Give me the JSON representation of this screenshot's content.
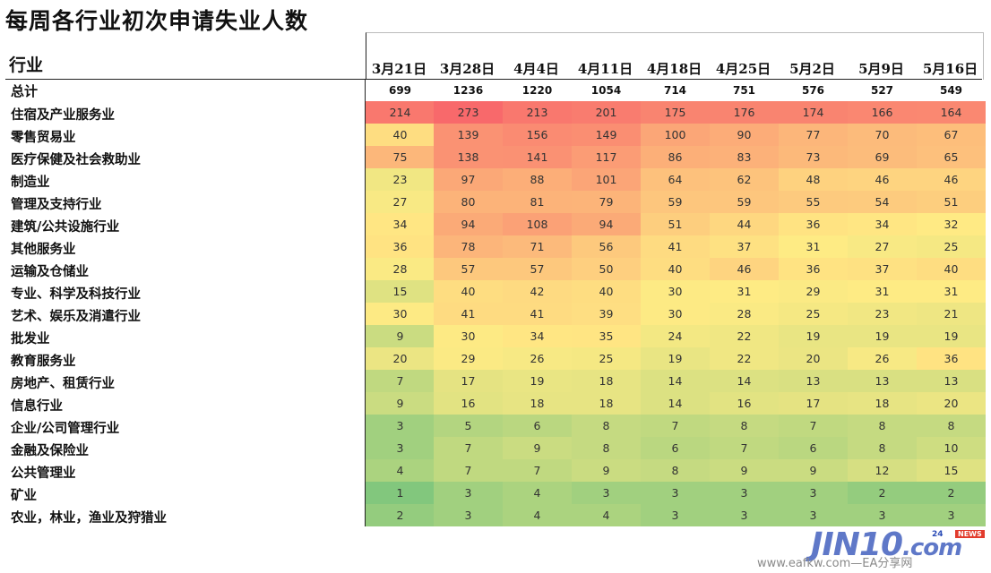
{
  "title": "每周各行业初次申请失业人数",
  "chart_data": {
    "type": "table",
    "row_header": "行业",
    "columns": [
      "3月21日",
      "3月28日",
      "4月4日",
      "4月11日",
      "4月18日",
      "4月25日",
      "5月2日",
      "5月9日",
      "5月16日"
    ],
    "total": {
      "label": "总计",
      "values": [
        699,
        1236,
        1220,
        1054,
        714,
        751,
        576,
        527,
        549
      ]
    },
    "rows": [
      {
        "label": "住宿及产业服务业",
        "values": [
          214,
          273,
          213,
          201,
          175,
          176,
          174,
          166,
          164
        ]
      },
      {
        "label": "零售贸易业",
        "values": [
          40,
          139,
          156,
          149,
          100,
          90,
          77,
          70,
          67
        ]
      },
      {
        "label": "医疗保健及社会救助业",
        "values": [
          75,
          138,
          141,
          117,
          86,
          83,
          73,
          69,
          65
        ]
      },
      {
        "label": "制造业",
        "values": [
          23,
          97,
          88,
          101,
          64,
          62,
          48,
          46,
          46
        ]
      },
      {
        "label": "管理及支持行业",
        "values": [
          27,
          80,
          81,
          79,
          59,
          59,
          55,
          54,
          51
        ]
      },
      {
        "label": "建筑/公共设施行业",
        "values": [
          34,
          94,
          108,
          94,
          51,
          44,
          36,
          34,
          32
        ]
      },
      {
        "label": "其他服务业",
        "values": [
          36,
          78,
          71,
          56,
          41,
          37,
          31,
          27,
          25
        ]
      },
      {
        "label": "运输及仓储业",
        "values": [
          28,
          57,
          57,
          50,
          40,
          46,
          36,
          37,
          40
        ]
      },
      {
        "label": "专业、科学及科技行业",
        "values": [
          15,
          40,
          42,
          40,
          30,
          31,
          29,
          31,
          31
        ]
      },
      {
        "label": "艺术、娱乐及消遣行业",
        "values": [
          30,
          41,
          41,
          39,
          30,
          28,
          25,
          23,
          21
        ]
      },
      {
        "label": "批发业",
        "values": [
          9,
          30,
          34,
          35,
          24,
          22,
          19,
          19,
          19
        ]
      },
      {
        "label": "教育服务业",
        "values": [
          20,
          29,
          26,
          25,
          19,
          22,
          20,
          26,
          36
        ]
      },
      {
        "label": "房地产、租赁行业",
        "values": [
          7,
          17,
          19,
          18,
          14,
          14,
          13,
          13,
          13
        ]
      },
      {
        "label": "信息行业",
        "values": [
          9,
          16,
          18,
          18,
          14,
          16,
          17,
          18,
          20
        ]
      },
      {
        "label": "企业/公司管理行业",
        "values": [
          3,
          5,
          6,
          8,
          7,
          8,
          7,
          8,
          8
        ]
      },
      {
        "label": "金融及保险业",
        "values": [
          3,
          7,
          9,
          8,
          6,
          7,
          6,
          8,
          10
        ]
      },
      {
        "label": "公共管理业",
        "values": [
          4,
          7,
          7,
          9,
          8,
          9,
          9,
          12,
          15
        ]
      },
      {
        "label": "矿业",
        "values": [
          1,
          3,
          4,
          3,
          3,
          3,
          3,
          2,
          2
        ]
      },
      {
        "label": "农业，林业，渔业及狩猎业",
        "values": [
          2,
          3,
          4,
          4,
          3,
          3,
          3,
          3,
          3
        ]
      }
    ],
    "color_scale": {
      "low": "#63be7b",
      "mid": "#ffeb84",
      "high": "#f8696b"
    }
  },
  "watermark": {
    "logo": "JIN10",
    "suffix": ".com",
    "badge": "NEWS",
    "num": "24",
    "url": "www.eafkw.com—EA分享网"
  }
}
